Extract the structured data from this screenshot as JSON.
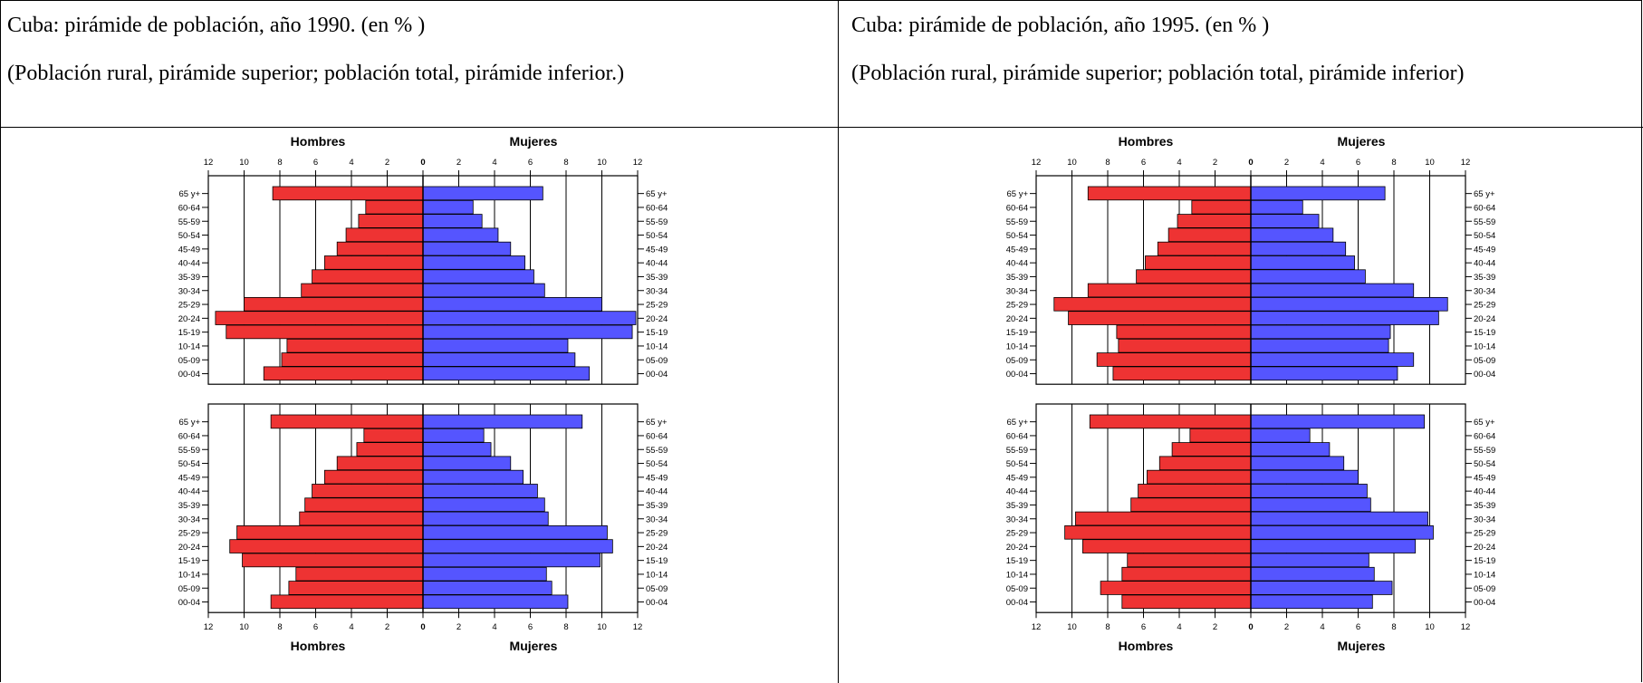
{
  "left_cell": {
    "title": "Cuba: pirámide de población, año 1990. (en % )",
    "subtitle": "(Población rural, pirámide superior; población total, pirámide inferior.)"
  },
  "right_cell": {
    "title": "Cuba: pirámide de población, año 1995. (en % )",
    "subtitle": "(Población rural, pirámide superior; población total, pirámide inferior)"
  },
  "colors": {
    "men": "#ee3333",
    "women": "#5555ff",
    "axis": "#000000",
    "grid": "#000000"
  },
  "chart_data": [
    {
      "type": "bar",
      "title": "1990",
      "pyramid": "rural (superior)",
      "orientation": "horizontal",
      "categories": [
        "65 y+",
        "60-64",
        "55-59",
        "50-54",
        "45-49",
        "40-44",
        "35-39",
        "30-34",
        "25-29",
        "20-24",
        "15-19",
        "10-14",
        "05-09",
        "00-04"
      ],
      "series": [
        {
          "name": "Hombres",
          "values": [
            8.4,
            3.2,
            3.6,
            4.3,
            4.8,
            5.5,
            6.2,
            6.8,
            10.0,
            11.6,
            11.0,
            7.6,
            7.9,
            8.9
          ]
        },
        {
          "name": "Mujeres",
          "values": [
            6.7,
            2.8,
            3.3,
            4.2,
            4.9,
            5.7,
            6.2,
            6.8,
            10.0,
            11.9,
            11.7,
            8.1,
            8.5,
            9.3
          ]
        }
      ],
      "xlim": [
        -12,
        12
      ],
      "ticks": [
        "12",
        "10",
        "8",
        "6",
        "4",
        "2",
        "0",
        "2",
        "4",
        "6",
        "8",
        "10",
        "12"
      ],
      "top_labels": {
        "left": "Hombres",
        "right": "Mujeres"
      }
    },
    {
      "type": "bar",
      "title": "1990",
      "pyramid": "total (inferior)",
      "orientation": "horizontal",
      "categories": [
        "65 y+",
        "60-64",
        "55-59",
        "50-54",
        "45-49",
        "40-44",
        "35-39",
        "30-34",
        "25-29",
        "20-24",
        "15-19",
        "10-14",
        "05-09",
        "00-04"
      ],
      "series": [
        {
          "name": "Hombres",
          "values": [
            8.5,
            3.3,
            3.7,
            4.8,
            5.5,
            6.2,
            6.6,
            6.9,
            10.4,
            10.8,
            10.1,
            7.1,
            7.5,
            8.5
          ]
        },
        {
          "name": "Mujeres",
          "values": [
            8.9,
            3.4,
            3.8,
            4.9,
            5.6,
            6.4,
            6.8,
            7.0,
            10.3,
            10.6,
            9.9,
            6.9,
            7.2,
            8.1
          ]
        }
      ],
      "xlim": [
        -12,
        12
      ],
      "ticks": [
        "12",
        "10",
        "8",
        "6",
        "4",
        "2",
        "0",
        "2",
        "4",
        "6",
        "8",
        "10",
        "12"
      ],
      "bottom_labels": {
        "left": "Hombres",
        "right": "Mujeres"
      }
    },
    {
      "type": "bar",
      "title": "1995",
      "pyramid": "rural (superior)",
      "orientation": "horizontal",
      "categories": [
        "65 y+",
        "60-64",
        "55-59",
        "50-54",
        "45-49",
        "40-44",
        "35-39",
        "30-34",
        "25-29",
        "20-24",
        "15-19",
        "10-14",
        "05-09",
        "00-04"
      ],
      "series": [
        {
          "name": "Hombres",
          "values": [
            9.1,
            3.3,
            4.1,
            4.6,
            5.2,
            5.9,
            6.4,
            9.1,
            11.0,
            10.2,
            7.5,
            7.4,
            8.6,
            7.7
          ]
        },
        {
          "name": "Mujeres",
          "values": [
            7.5,
            2.9,
            3.8,
            4.6,
            5.3,
            5.8,
            6.4,
            9.1,
            11.0,
            10.5,
            7.8,
            7.7,
            9.1,
            8.2
          ]
        }
      ],
      "xlim": [
        -12,
        12
      ],
      "ticks": [
        "12",
        "10",
        "8",
        "6",
        "4",
        "2",
        "0",
        "2",
        "4",
        "6",
        "8",
        "10",
        "12"
      ],
      "top_labels": {
        "left": "Hombres",
        "right": "Mujeres"
      }
    },
    {
      "type": "bar",
      "title": "1995",
      "pyramid": "total (inferior)",
      "orientation": "horizontal",
      "categories": [
        "65 y+",
        "60-64",
        "55-59",
        "50-54",
        "45-49",
        "40-44",
        "35-39",
        "30-34",
        "25-29",
        "20-24",
        "15-19",
        "10-14",
        "05-09",
        "00-04"
      ],
      "series": [
        {
          "name": "Hombres",
          "values": [
            9.0,
            3.4,
            4.4,
            5.1,
            5.8,
            6.3,
            6.7,
            9.8,
            10.4,
            9.4,
            6.9,
            7.2,
            8.4,
            7.2
          ]
        },
        {
          "name": "Mujeres",
          "values": [
            9.7,
            3.3,
            4.4,
            5.2,
            6.0,
            6.5,
            6.7,
            9.9,
            10.2,
            9.2,
            6.6,
            6.9,
            7.9,
            6.8
          ]
        }
      ],
      "xlim": [
        -12,
        12
      ],
      "ticks": [
        "12",
        "10",
        "8",
        "6",
        "4",
        "2",
        "0",
        "2",
        "4",
        "6",
        "8",
        "10",
        "12"
      ],
      "bottom_labels": {
        "left": "Hombres",
        "right": "Mujeres"
      }
    }
  ]
}
